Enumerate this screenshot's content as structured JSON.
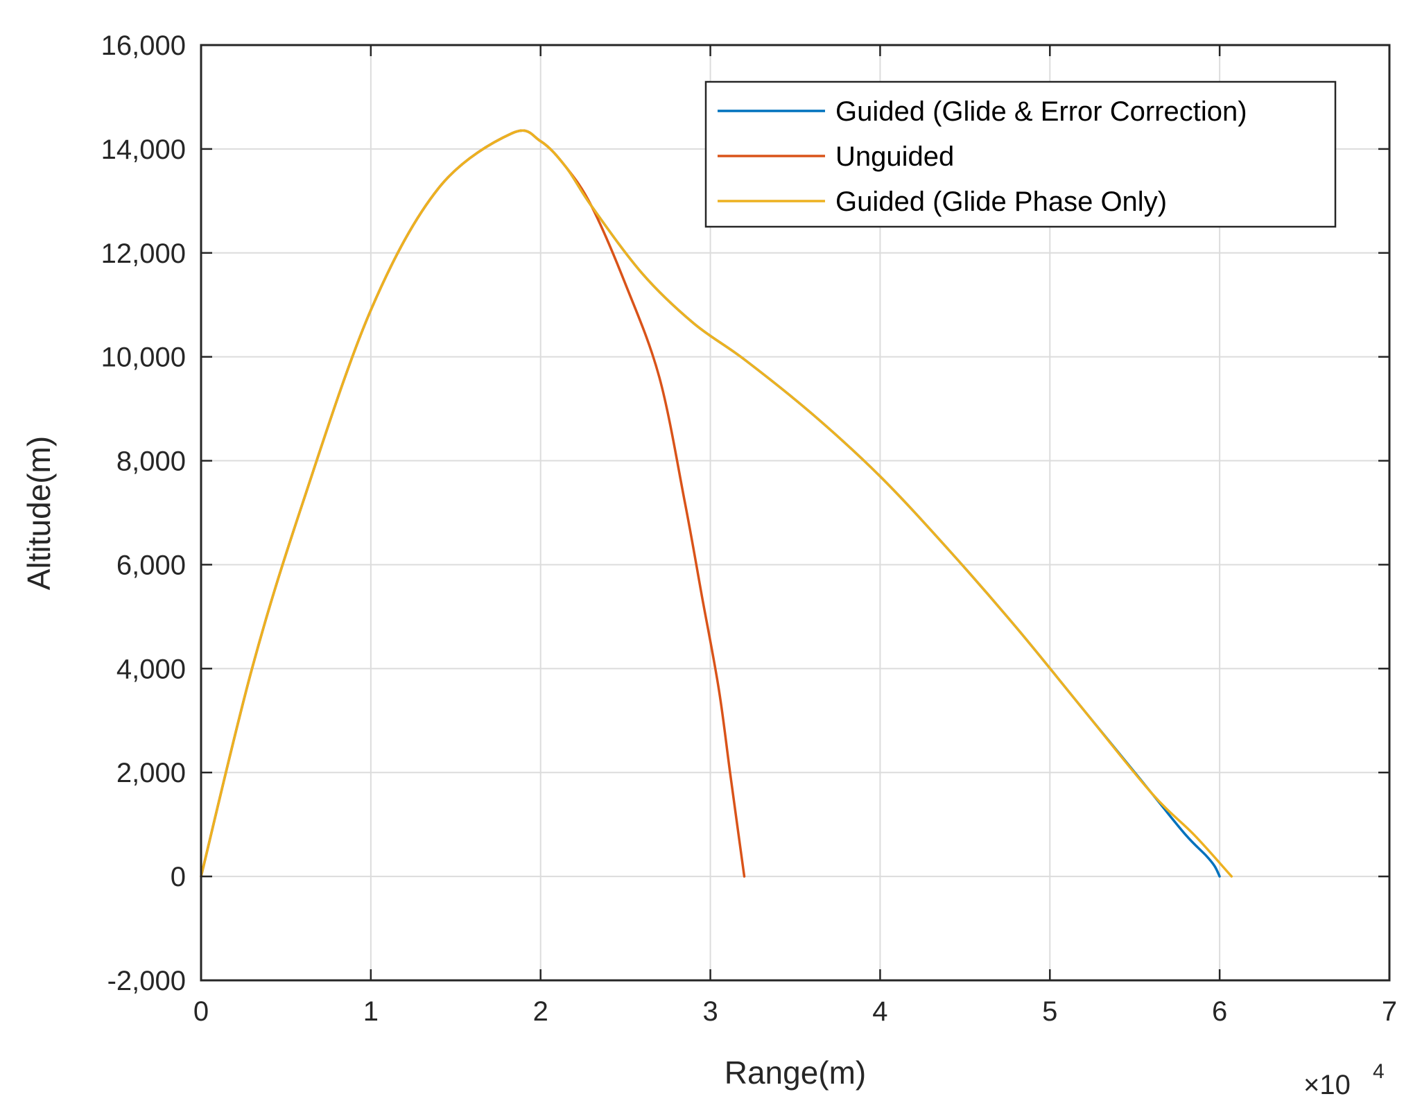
{
  "chart_data": {
    "type": "line",
    "xlabel": "Range(m)",
    "ylabel": "Altitude(m)",
    "xlim": [
      0,
      70000
    ],
    "ylim": [
      -2000,
      16000
    ],
    "x_multiplier": "×10",
    "x_multiplier_exponent": "4",
    "x_ticks": [
      0,
      10000,
      20000,
      30000,
      40000,
      50000,
      60000,
      70000
    ],
    "x_tick_labels": [
      "0",
      "1",
      "2",
      "3",
      "4",
      "5",
      "6",
      "7"
    ],
    "y_ticks": [
      -2000,
      0,
      2000,
      4000,
      6000,
      8000,
      10000,
      12000,
      14000,
      16000
    ],
    "y_tick_labels": [
      "-2,000",
      "0",
      "2,000",
      "4,000",
      "6,000",
      "8,000",
      "10,000",
      "12,000",
      "14,000",
      "16,000"
    ],
    "grid": true,
    "legend_position": "top-right",
    "series": [
      {
        "name": "Guided (Glide & Error Correction)",
        "color": "#0072BD",
        "x": [
          0,
          3000,
          6000,
          10000,
          14000,
          18300,
          20000,
          21500,
          23000,
          26000,
          29000,
          32000,
          36000,
          40000,
          44000,
          48000,
          52000,
          56000,
          58000,
          59200,
          59700,
          60000
        ],
        "y": [
          0,
          4000,
          7200,
          10900,
          13250,
          14300,
          14150,
          13650,
          12900,
          11600,
          10650,
          9950,
          8900,
          7700,
          6300,
          4800,
          3200,
          1600,
          800,
          400,
          200,
          0
        ]
      },
      {
        "name": "Unguided",
        "color": "#D95319",
        "x": [
          0,
          3000,
          6000,
          10000,
          14000,
          18300,
          20000,
          21500,
          23000,
          25000,
          27000,
          28500,
          29500,
          30500,
          31200,
          32000
        ],
        "y": [
          0,
          4000,
          7200,
          10900,
          13250,
          14300,
          14150,
          13650,
          12900,
          11400,
          9600,
          7200,
          5400,
          3600,
          1900,
          0
        ]
      },
      {
        "name": "Guided (Glide Phase Only)",
        "color": "#EDB120",
        "x": [
          0,
          3000,
          6000,
          10000,
          14000,
          18300,
          20000,
          21500,
          23000,
          26000,
          29000,
          32000,
          36000,
          40000,
          44000,
          48000,
          52000,
          56000,
          58500,
          60700
        ],
        "y": [
          0,
          4000,
          7200,
          10900,
          13250,
          14300,
          14150,
          13650,
          12900,
          11600,
          10650,
          9950,
          8900,
          7700,
          6300,
          4800,
          3200,
          1600,
          800,
          0
        ]
      }
    ]
  }
}
